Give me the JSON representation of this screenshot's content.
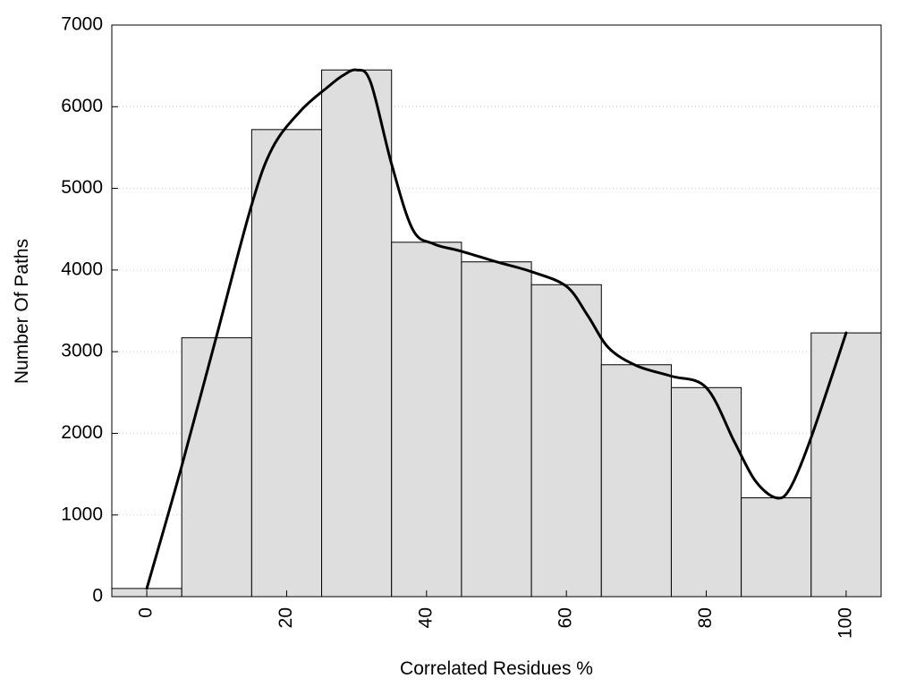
{
  "chart_data": {
    "type": "bar",
    "title": "",
    "xlabel": "Correlated Residues %",
    "ylabel": "Number Of Paths",
    "bins": [
      {
        "x": 0,
        "value": 100
      },
      {
        "x": 10,
        "value": 3170
      },
      {
        "x": 20,
        "value": 5720
      },
      {
        "x": 30,
        "value": 6450
      },
      {
        "x": 40,
        "value": 4340
      },
      {
        "x": 50,
        "value": 4100
      },
      {
        "x": 60,
        "value": 3820
      },
      {
        "x": 70,
        "value": 2840
      },
      {
        "x": 80,
        "value": 2560
      },
      {
        "x": 90,
        "value": 1210
      },
      {
        "x": 100,
        "value": 3230
      }
    ],
    "bin_width": 10,
    "curve": [
      [
        0,
        100
      ],
      [
        5,
        1600
      ],
      [
        10,
        3200
      ],
      [
        15,
        4800
      ],
      [
        18,
        5500
      ],
      [
        22,
        5950
      ],
      [
        26,
        6250
      ],
      [
        28,
        6380
      ],
      [
        30,
        6450
      ],
      [
        32,
        6300
      ],
      [
        35,
        5300
      ],
      [
        38,
        4500
      ],
      [
        41,
        4320
      ],
      [
        45,
        4230
      ],
      [
        50,
        4100
      ],
      [
        55,
        3980
      ],
      [
        60,
        3800
      ],
      [
        63,
        3450
      ],
      [
        66,
        3050
      ],
      [
        70,
        2830
      ],
      [
        75,
        2700
      ],
      [
        80,
        2560
      ],
      [
        84,
        1900
      ],
      [
        87,
        1420
      ],
      [
        90,
        1210
      ],
      [
        92,
        1330
      ],
      [
        95,
        1950
      ],
      [
        100,
        3230
      ]
    ],
    "xlim": [
      -5,
      105
    ],
    "ylim": [
      0,
      7000
    ],
    "xticks": [
      0,
      20,
      40,
      60,
      80,
      100
    ],
    "yticks": [
      0,
      1000,
      2000,
      3000,
      4000,
      5000,
      6000,
      7000
    ],
    "grid": "horizontal dotted",
    "colors": {
      "bar_fill": "#dedede",
      "bar_stroke": "#000000",
      "curve": "#000000",
      "grid": "#cccccc"
    }
  }
}
